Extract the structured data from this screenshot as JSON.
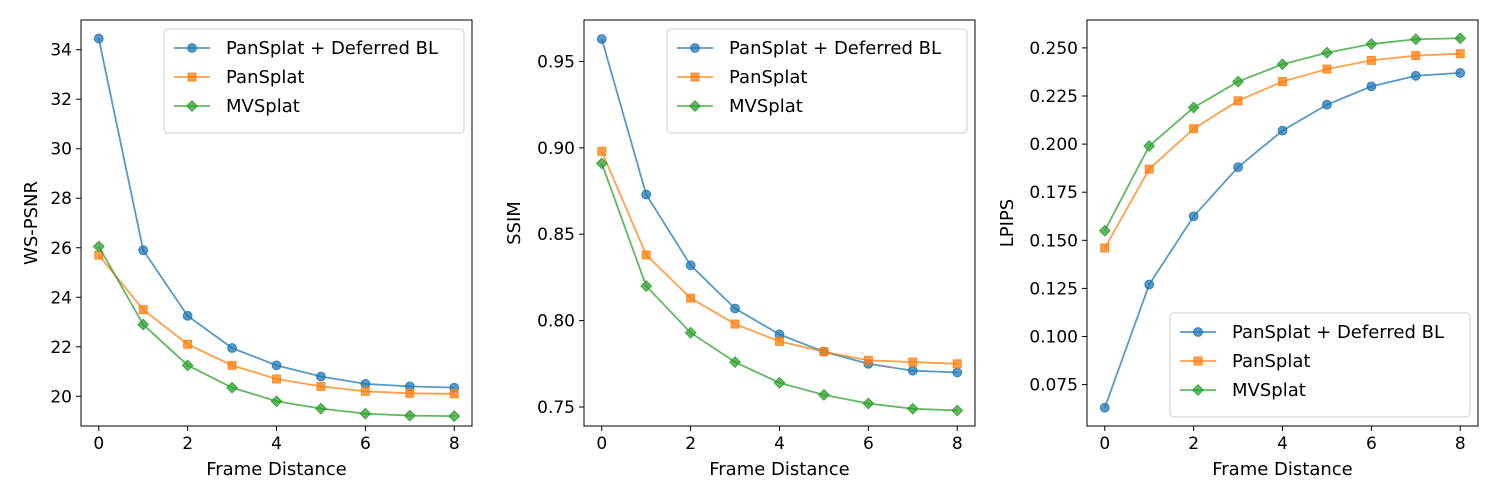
{
  "chart_data": [
    {
      "type": "line",
      "title": "",
      "xlabel": "Frame Distance",
      "ylabel": "WS-PSNR",
      "x": [
        0,
        1,
        2,
        3,
        4,
        5,
        6,
        7,
        8
      ],
      "xlim": [
        -0.4,
        8.4
      ],
      "ylim": [
        18.8,
        35.2
      ],
      "xticks": [
        0,
        2,
        4,
        6,
        8
      ],
      "yticks": [
        20,
        22,
        24,
        26,
        28,
        30,
        32,
        34
      ],
      "ytick_decimals": 0,
      "legend_position": "top-right",
      "grid": false,
      "series": [
        {
          "name": "PanSplat + Deferred BL",
          "color": "#1f77b4",
          "marker": "circle",
          "values": [
            34.45,
            25.9,
            23.25,
            21.95,
            21.25,
            20.8,
            20.5,
            20.4,
            20.35
          ]
        },
        {
          "name": "PanSplat",
          "color": "#ff7f0e",
          "marker": "square",
          "values": [
            25.7,
            23.5,
            22.1,
            21.25,
            20.7,
            20.4,
            20.2,
            20.12,
            20.1
          ]
        },
        {
          "name": "MVSplat",
          "color": "#2ca02c",
          "marker": "diamond",
          "values": [
            26.05,
            22.9,
            21.25,
            20.35,
            19.8,
            19.5,
            19.3,
            19.22,
            19.2
          ]
        }
      ]
    },
    {
      "type": "line",
      "title": "",
      "xlabel": "Frame Distance",
      "ylabel": "SSIM",
      "x": [
        0,
        1,
        2,
        3,
        4,
        5,
        6,
        7,
        8
      ],
      "xlim": [
        -0.4,
        8.4
      ],
      "ylim": [
        0.739,
        0.974
      ],
      "xticks": [
        0,
        2,
        4,
        6,
        8
      ],
      "yticks": [
        0.75,
        0.8,
        0.85,
        0.9,
        0.95
      ],
      "ytick_decimals": 2,
      "legend_position": "top-right",
      "grid": false,
      "series": [
        {
          "name": "PanSplat + Deferred BL",
          "color": "#1f77b4",
          "marker": "circle",
          "values": [
            0.963,
            0.873,
            0.832,
            0.807,
            0.792,
            0.782,
            0.775,
            0.771,
            0.77
          ]
        },
        {
          "name": "PanSplat",
          "color": "#ff7f0e",
          "marker": "square",
          "values": [
            0.898,
            0.838,
            0.813,
            0.798,
            0.788,
            0.782,
            0.777,
            0.776,
            0.775
          ]
        },
        {
          "name": "MVSplat",
          "color": "#2ca02c",
          "marker": "diamond",
          "values": [
            0.891,
            0.82,
            0.793,
            0.776,
            0.764,
            0.757,
            0.752,
            0.749,
            0.748
          ]
        }
      ]
    },
    {
      "type": "line",
      "title": "",
      "xlabel": "Frame Distance",
      "ylabel": "LPIPS",
      "x": [
        0,
        1,
        2,
        3,
        4,
        5,
        6,
        7,
        8
      ],
      "xlim": [
        -0.4,
        8.4
      ],
      "ylim": [
        0.0535,
        0.2645
      ],
      "xticks": [
        0,
        2,
        4,
        6,
        8
      ],
      "yticks": [
        0.075,
        0.1,
        0.125,
        0.15,
        0.175,
        0.2,
        0.225,
        0.25
      ],
      "ytick_decimals": 3,
      "legend_position": "bottom-right",
      "grid": false,
      "series": [
        {
          "name": "PanSplat + Deferred BL",
          "color": "#1f77b4",
          "marker": "circle",
          "values": [
            0.063,
            0.127,
            0.1625,
            0.188,
            0.207,
            0.2205,
            0.23,
            0.2355,
            0.237
          ]
        },
        {
          "name": "PanSplat",
          "color": "#ff7f0e",
          "marker": "square",
          "values": [
            0.146,
            0.187,
            0.208,
            0.2225,
            0.2325,
            0.239,
            0.2435,
            0.246,
            0.247
          ]
        },
        {
          "name": "MVSplat",
          "color": "#2ca02c",
          "marker": "diamond",
          "values": [
            0.155,
            0.199,
            0.219,
            0.2325,
            0.2415,
            0.2475,
            0.252,
            0.2545,
            0.255
          ]
        }
      ]
    }
  ]
}
